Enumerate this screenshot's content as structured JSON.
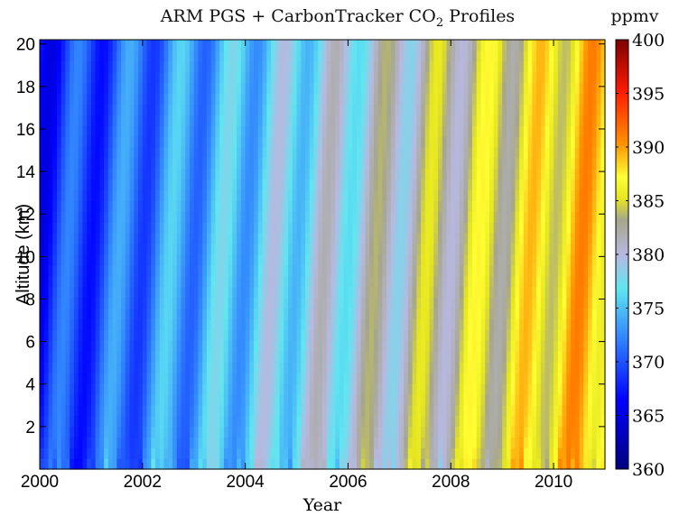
{
  "chart_data": {
    "type": "heatmap",
    "title_prefix": "ARM PGS + CarbonTracker CO",
    "title_subscript": "2",
    "title_suffix": " Profiles",
    "xlabel": "Year",
    "ylabel": "Altitude (km)",
    "colorbar_label": "ppmv",
    "xlim": [
      2000,
      2011
    ],
    "ylim": [
      0,
      20.2
    ],
    "clim": [
      360,
      400
    ],
    "x_ticks": [
      2000,
      2002,
      2004,
      2006,
      2008,
      2010
    ],
    "y_ticks": [
      2,
      4,
      6,
      8,
      10,
      12,
      14,
      16,
      18,
      20
    ],
    "colorbar_ticks": [
      360,
      365,
      370,
      375,
      380,
      385,
      390,
      395,
      400
    ],
    "colormap": [
      {
        "v": 0.0,
        "color": "#00007f"
      },
      {
        "v": 0.16,
        "color": "#0000ff"
      },
      {
        "v": 0.3,
        "color": "#2f80ff"
      },
      {
        "v": 0.42,
        "color": "#5fe6f0"
      },
      {
        "v": 0.5,
        "color": "#b8b8e0"
      },
      {
        "v": 0.58,
        "color": "#a6a68c"
      },
      {
        "v": 0.63,
        "color": "#e6e620"
      },
      {
        "v": 0.68,
        "color": "#ffff33"
      },
      {
        "v": 0.76,
        "color": "#ff9000"
      },
      {
        "v": 0.88,
        "color": "#ff1a00"
      },
      {
        "v": 1.0,
        "color": "#7f0000"
      }
    ],
    "trend": {
      "base": 368.5,
      "slope_ppm_per_year": 1.9,
      "seasonal_amplitude": 3.2,
      "lag_years_per_20km": 0.45
    }
  }
}
